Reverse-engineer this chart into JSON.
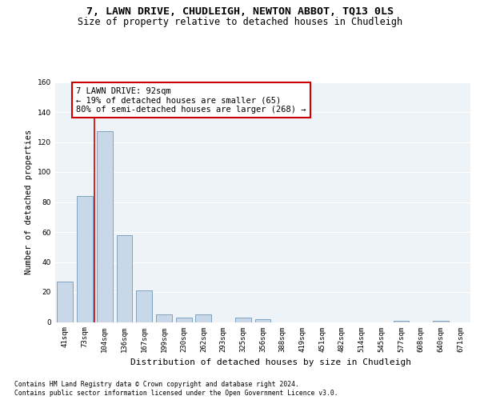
{
  "title_line1": "7, LAWN DRIVE, CHUDLEIGH, NEWTON ABBOT, TQ13 0LS",
  "title_line2": "Size of property relative to detached houses in Chudleigh",
  "xlabel": "Distribution of detached houses by size in Chudleigh",
  "ylabel": "Number of detached properties",
  "categories": [
    "41sqm",
    "73sqm",
    "104sqm",
    "136sqm",
    "167sqm",
    "199sqm",
    "230sqm",
    "262sqm",
    "293sqm",
    "325sqm",
    "356sqm",
    "388sqm",
    "419sqm",
    "451sqm",
    "482sqm",
    "514sqm",
    "545sqm",
    "577sqm",
    "608sqm",
    "640sqm",
    "671sqm"
  ],
  "values": [
    27,
    84,
    127,
    58,
    21,
    5,
    3,
    5,
    0,
    3,
    2,
    0,
    0,
    0,
    0,
    0,
    0,
    1,
    0,
    1,
    0
  ],
  "bar_color": "#c8d8e8",
  "bar_edge_color": "#7098b8",
  "bar_width": 0.8,
  "vline_x": 1.5,
  "vline_color": "#cc0000",
  "annotation_text": "7 LAWN DRIVE: 92sqm\n← 19% of detached houses are smaller (65)\n80% of semi-detached houses are larger (268) →",
  "annotation_box_color": "#cc0000",
  "ylim": [
    0,
    160
  ],
  "yticks": [
    0,
    20,
    40,
    60,
    80,
    100,
    120,
    140,
    160
  ],
  "bg_color": "#eef3f8",
  "footer_line1": "Contains HM Land Registry data © Crown copyright and database right 2024.",
  "footer_line2": "Contains public sector information licensed under the Open Government Licence v3.0.",
  "title_fontsize": 9.5,
  "subtitle_fontsize": 8.5,
  "ylabel_fontsize": 7.5,
  "xlabel_fontsize": 8,
  "tick_fontsize": 6.5,
  "annotation_fontsize": 7.5,
  "footer_fontsize": 5.8
}
